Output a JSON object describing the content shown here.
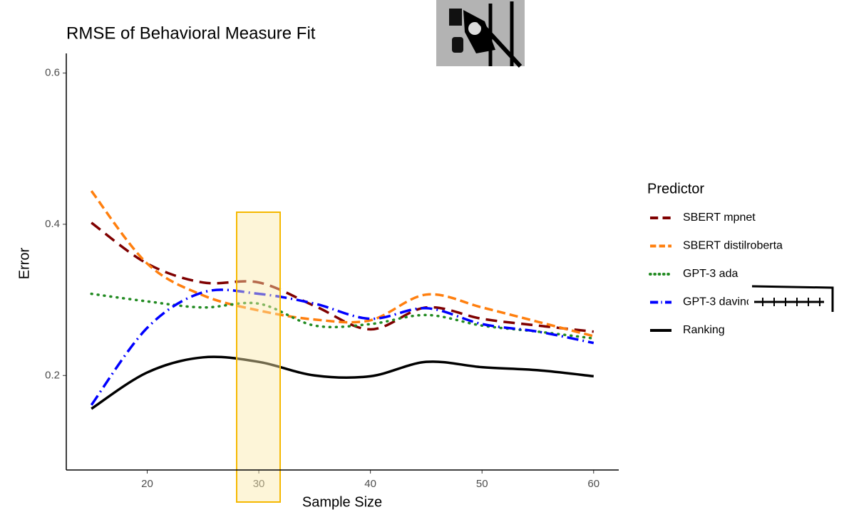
{
  "chart_data": {
    "type": "line",
    "title": "RMSE of Behavioral Measure Fit",
    "x_label": "Sample Size",
    "y_label": "Error",
    "legend_title": "Predictor",
    "x": [
      15,
      20,
      25,
      30,
      35,
      40,
      45,
      50,
      55,
      60
    ],
    "xlim": [
      12.75,
      62.25
    ],
    "xticks": [
      20,
      30,
      40,
      50,
      60
    ],
    "ylim": [
      0.075,
      0.626
    ],
    "yticks": [
      0.2,
      0.4,
      0.6
    ],
    "series": [
      {
        "name": "SBERT mpnet",
        "color": "#7f0000",
        "dash": "16,9",
        "values": [
          0.402,
          0.348,
          0.323,
          0.323,
          0.292,
          0.261,
          0.29,
          0.275,
          0.266,
          0.258
        ]
      },
      {
        "name": "SBERT distilroberta",
        "color": "#ff7f0e",
        "dash": "12,6",
        "values": [
          0.444,
          0.348,
          0.306,
          0.286,
          0.274,
          0.273,
          0.307,
          0.29,
          0.271,
          0.252
        ]
      },
      {
        "name": "GPT-3 ada",
        "color": "#228b22",
        "dash": "1,8",
        "values": [
          0.308,
          0.298,
          0.29,
          0.295,
          0.266,
          0.268,
          0.28,
          0.266,
          0.258,
          0.249
        ]
      },
      {
        "name": "GPT-3 davinci",
        "color": "#0000ff",
        "dash": "16,6,2,6",
        "values": [
          0.161,
          0.263,
          0.31,
          0.308,
          0.295,
          0.275,
          0.289,
          0.268,
          0.258,
          0.243
        ]
      },
      {
        "name": "Ranking",
        "color": "#000000",
        "dash": "none",
        "values": [
          0.156,
          0.204,
          0.224,
          0.218,
          0.2,
          0.199,
          0.218,
          0.211,
          0.207,
          0.199
        ]
      }
    ]
  }
}
